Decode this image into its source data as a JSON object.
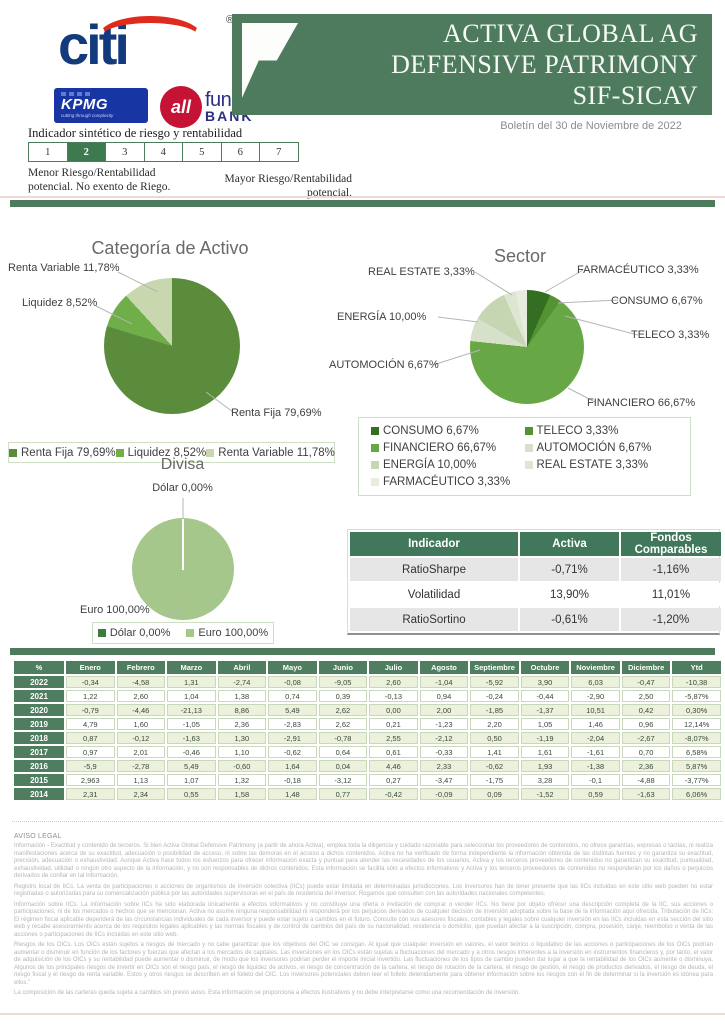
{
  "header": {
    "citi_text": "citi",
    "citi_registered": "®",
    "kpmg_text": "KPMG",
    "kpmg_tagline": "cutting through complexity",
    "allfunds_circle_text": "all",
    "allfunds_word1": "funds",
    "allfunds_word2": "BANK",
    "title_line1": "ACTIVA GLOBAL AG",
    "title_line2": "DEFENSIVE PATRIMONY",
    "title_line3": "SIF-SICAV",
    "bulletin_date": "Boletín del 30 de Noviembre de 2022"
  },
  "risk_indicator": {
    "title": "Indicador sintético de riesgo y rentabilidad",
    "levels": [
      "1",
      "2",
      "3",
      "4",
      "5",
      "6",
      "7"
    ],
    "selected_level": "2",
    "caption_left": "Menor Riesgo/Rentabilidad potencial. No exento de Riego.",
    "caption_right": "Mayor Riesgo/Rentabilidad potencial."
  },
  "colors": {
    "brand_green": "#4e7b5e",
    "table_header_green": "#41775a",
    "risk_selected_green": "#3e7a50",
    "row_stripe_green": "#ecf1dc",
    "citi_blue": "#123a7d",
    "citi_red": "#df2b1e",
    "kpmg_blue": "#1836a3",
    "allfunds_red": "#c41334",
    "allfunds_navy": "#2b2e85"
  },
  "chart_data": [
    {
      "id": "categoria-de-activo",
      "type": "pie",
      "title": "Categoría de Activo",
      "labels": [
        "Renta Fija",
        "Liquidez",
        "Renta Variable"
      ],
      "values": [
        79.69,
        8.52,
        11.78
      ],
      "display": [
        "Renta Fija 79,69%",
        "Liquidez 8,52%",
        "Renta Variable 11,78%"
      ],
      "colors": [
        "#5a8c3c",
        "#6fae49",
        "#c9d7af"
      ],
      "legend_position": "bottom"
    },
    {
      "id": "sector",
      "type": "pie",
      "title": "Sector",
      "labels": [
        "CONSUMO",
        "TELECO",
        "FINANCIERO",
        "AUTOMOCIÓN",
        "ENERGÍA",
        "REAL ESTATE",
        "FARMACÉUTICO"
      ],
      "values": [
        6.67,
        3.33,
        66.67,
        6.67,
        10.0,
        3.33,
        3.33
      ],
      "display": [
        "CONSUMO 6,67%",
        "TELECO 3,33%",
        "FINANCIERO 66,67%",
        "AUTOMOCIÓN 6,67%",
        "ENERGÍA  10,00%",
        "REAL ESTATE 3,33%",
        "FARMACÉUTICO 3,33%"
      ],
      "colors": [
        "#346e22",
        "#559232",
        "#68a746",
        "#d7e0c9",
        "#c7d6b2",
        "#dde6d1",
        "#e7edde"
      ],
      "legend_position": "bottom"
    },
    {
      "id": "divisa",
      "type": "pie",
      "title": "Divisa",
      "labels": [
        "Dólar",
        "Euro"
      ],
      "values": [
        0.0,
        100.0
      ],
      "display": [
        "Dólar 0,00%",
        "Euro 100,00%"
      ],
      "colors": [
        "#3e7a3c",
        "#a5c78c"
      ],
      "legend_position": "bottom"
    },
    {
      "id": "indicadores",
      "type": "table",
      "headers": [
        "Indicador",
        "Activa",
        "Fondos Comparables"
      ],
      "rows": [
        [
          "RatioSharpe",
          "-0,71%",
          "-1,16%"
        ],
        [
          "Volatilidad",
          "13,90%",
          "11,01%"
        ],
        [
          "RatioSortino",
          "-0,61%",
          "-1,20%"
        ]
      ]
    },
    {
      "id": "rentabilidades-mensuales",
      "type": "table",
      "headers": [
        "%",
        "Enero",
        "Febrero",
        "Marzo",
        "Abril",
        "Mayo",
        "Junio",
        "Julio",
        "Agosto",
        "Septiembre",
        "Octubre",
        "Noviembre",
        "Diciembre",
        "Ytd"
      ],
      "rows": [
        [
          "2022",
          "-0,34",
          "-4,58",
          "1,31",
          "-2,74",
          "-0,08",
          "-9,05",
          "2,60",
          "-1,04",
          "-5,92",
          "3,90",
          "6,03",
          "-0,47",
          "-10,38"
        ],
        [
          "2021",
          "1,22",
          "2,60",
          "1,04",
          "1,38",
          "0,74",
          "0,39",
          "-0,13",
          "0,94",
          "-0,24",
          "-0,44",
          "-2,90",
          "2,50",
          "-5,87%"
        ],
        [
          "2020",
          "-0,79",
          "-4,46",
          "-21,13",
          "8,86",
          "5,49",
          "2,62",
          "0,00",
          "2,00",
          "-1,85",
          "-1,37",
          "10,51",
          "0,42",
          "0,30%"
        ],
        [
          "2019",
          "4,79",
          "1,60",
          "-1,05",
          "2,36",
          "-2,83",
          "2,62",
          "0,21",
          "-1,23",
          "2,20",
          "1,05",
          "1,46",
          "0,96",
          "12,14%"
        ],
        [
          "2018",
          "0,87",
          "-0,12",
          "-1,63",
          "1,30",
          "-2,91",
          "-0,78",
          "2,55",
          "-2,12",
          "0,50",
          "-1,19",
          "-2,04",
          "-2,67",
          "-8,07%"
        ],
        [
          "2017",
          "0,97",
          "2,01",
          "-0,46",
          "1,10",
          "-0,62",
          "0,64",
          "0,61",
          "-0,33",
          "1,41",
          "1,61",
          "-1,61",
          "0,70",
          "6,58%"
        ],
        [
          "2016",
          "-5,9",
          "-2,78",
          "5,49",
          "-0,60",
          "1,64",
          "0,04",
          "4,46",
          "2,33",
          "-0,62",
          "1,93",
          "-1,38",
          "2,36",
          "5,87%"
        ],
        [
          "2015",
          "2,963",
          "1,13",
          "1,07",
          "1,32",
          "-0,18",
          "-3,12",
          "0,27",
          "-3,47",
          "-1,75",
          "3,28",
          "-0,1",
          "-4,88",
          "-3,77%"
        ],
        [
          "2014",
          "2,31",
          "2,34",
          "0,55",
          "1,58",
          "1,48",
          "0,77",
          "-0,42",
          "-0,09",
          "0,09",
          "-1,52",
          "0,59",
          "-1,63",
          "6,06%"
        ]
      ]
    }
  ],
  "legal": {
    "heading": "AVISO LEGAL",
    "paragraphs": [
      "Información - Exactitud y contenido de terceros. Si bien Activa Global Defensive Patrimony (a partir de ahora Activa), emplea toda la diligencia y cuidado razonable para seleccionar los proveedores de contenidos, no ofrece garantías, expresas o tácitas, ni realiza manifestaciones acerca de su exactitud, adecuación o posibilidad de acceso, ni sobre las demoras en el acceso a dichos contenidos. Activa no ha verificado de forma independiente la información obtenida de las distintas fuentes y no garantiza su exactitud, precisión, adecuación o exhaustividad. Aunque Activa hace todos los esfuerzos para ofrecer información exacta y puntual para atender las necesidades de los usuarios, Activa y los terceros proveedores de contenidos no garantizan su exactitud, puntualidad, exhaustividad, utilidad o ningún otro aspecto de la información, y no son responsables de dichos contenidos. Esta información se facilita sólo a efectos informativos y Activa y los terceros proveedores de contenidos no responderán por los daños o perjuicios derivados de confiar en tal información.",
      "Registro local de IICs. La venta de participaciones o acciones de organismos de inversión colectiva (IICs) puede estar limitada en determinadas jurisdicciones. Los inversores han de tener presente que las IICs incluidas en este sitio web pueden no estar registradas o autorizadas para su comercialización pública por las autoridades supervisoras en el país de residencia del inversor. Rogamos que consulten con las autoridades nacionales competentes.",
      "Información sobre IICs. La información sobre IICs ha sido elaborada únicamente a efectos informativos y no constituye una oferta o invitación de comprar o vender IICs. No tiene por objeto ofrecer una descripción completa de la IIC, sus acciones o participaciones, ni de los mercados o hechos que se mencionan. Activa no asume ninguna responsabilidad ni responderá por los perjuicios derivados de cualquier decisión de inversión adoptada sobre la base de la información aquí ofrecida. Tributación de IICs: El régimen fiscal aplicable dependerá de las circunstancias individuales de cada inversor y puede estar sujeto a cambios en el futuro. Consulte con sus asesores fiscales, contables y legales sobre cualquier inversión en las IICs incluidas en esta sección del sitio web y recabe asesoramiento acerca de los requisitos legales aplicables y las normas fiscales y de control de cambios del país de su nacionalidad, residencia o domicilio, que puedan afectar a la suscripción, compra, posesión, canje, reembolso o venta de las acciones o participaciones de IICs incluidas en este sitio web.",
      "Riesgos de los OICs. Los OICs están sujetos a riesgos de mercado y no cabe garantizar que los objetivos del OIC se consigan. Al igual que cualquier inversión en valores, el valor teórico o liquidativo de las acciones o participaciones de los OICs podrían aumentar o disminuir en función de los factores y fuerzas que afectan a los mercados de capitales. Las inversiones en los OICs están sujetas a fluctuaciones del mercado y a otros riesgos inherentes a la inversión en instrumentos financieros y, por tanto, el valor de adquisición de los OICs y su rentabilidad puede aumentar o disminuir, de modo que los inversores podrían perder el importe inicial invertido. Las fluctuaciones de los tipos de cambio pueden dar lugar a que la rentabilidad de los OICs aumente o disminuya. Algunos de los principales riesgos de invertir en OICs son el riesgo país, el riesgo de liquidez de activos, el riesgo de concentración de la cartera, el riesgo de rotación de la cartera, el riesgo de gestión, el riesgo de productos derivados, el riesgo de deuda, el riesgo fiscal y el riesgo de renta variable. Estos y otros riesgos se describen en el folleto del OIC. Los inversores potenciales deben leer el folleto detenidamente para obtener información sobre los riesgos con el fin de determinar si la inversión es idónea para ellos.\"",
      "La composición de las carteras queda sujeta a cambios sin previo aviso. Esta información se proporciona a efectos ilustrativos y no debe interpretarse como una recomendación de inversión."
    ]
  }
}
